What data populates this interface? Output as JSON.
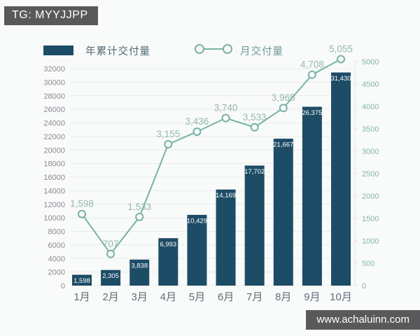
{
  "page": {
    "tg_tag": "TG: MYYJJPP",
    "watermark": "www.achaluinn.com"
  },
  "legend": {
    "bar_label": "年累计交付量",
    "line_label": "月交付量"
  },
  "colors": {
    "bar": "#1d4c66",
    "line": "#76b3a6",
    "line_label_text": "#94b9b0",
    "right_axis_text": "#84b7ab",
    "left_axis_text": "#8b8b93",
    "x_axis_text": "#5f6e78",
    "gridline": "#e9eaea",
    "bar_value_text": "#ffffff",
    "badge_bg": "#59595b"
  },
  "chart_data": {
    "type": "bar",
    "subtype": "combo-bar-line-dual-axis",
    "categories": [
      "1月",
      "2月",
      "3月",
      "4月",
      "5月",
      "6月",
      "7月",
      "8月",
      "9月",
      "10月"
    ],
    "series": [
      {
        "name": "年累计交付量",
        "kind": "bar",
        "axis": "left",
        "values": [
          1598,
          2305,
          3838,
          6993,
          10429,
          14169,
          17702,
          21667,
          26375,
          31430
        ],
        "labels": [
          "1,598",
          "2,305",
          "3,838",
          "6,993",
          "10,429",
          "14,169",
          "17,702",
          "21,667",
          "26,375",
          "31,430"
        ]
      },
      {
        "name": "月交付量",
        "kind": "line",
        "axis": "right",
        "values": [
          1598,
          707,
          1533,
          3155,
          3436,
          3740,
          3533,
          3965,
          4708,
          5055
        ],
        "labels": [
          "1,598",
          "707",
          "1,533",
          "3,155",
          "3,436",
          "3,740",
          "3,533",
          "3,965",
          "4,708",
          "5,055"
        ]
      }
    ],
    "left_axis": {
      "min": 0,
      "max": 32000,
      "step": 2000
    },
    "right_axis": {
      "min": 0,
      "max": 5000,
      "step": 500
    },
    "grid": true,
    "legend_position": "top",
    "title": "",
    "xlabel": "",
    "ylabel": ""
  }
}
